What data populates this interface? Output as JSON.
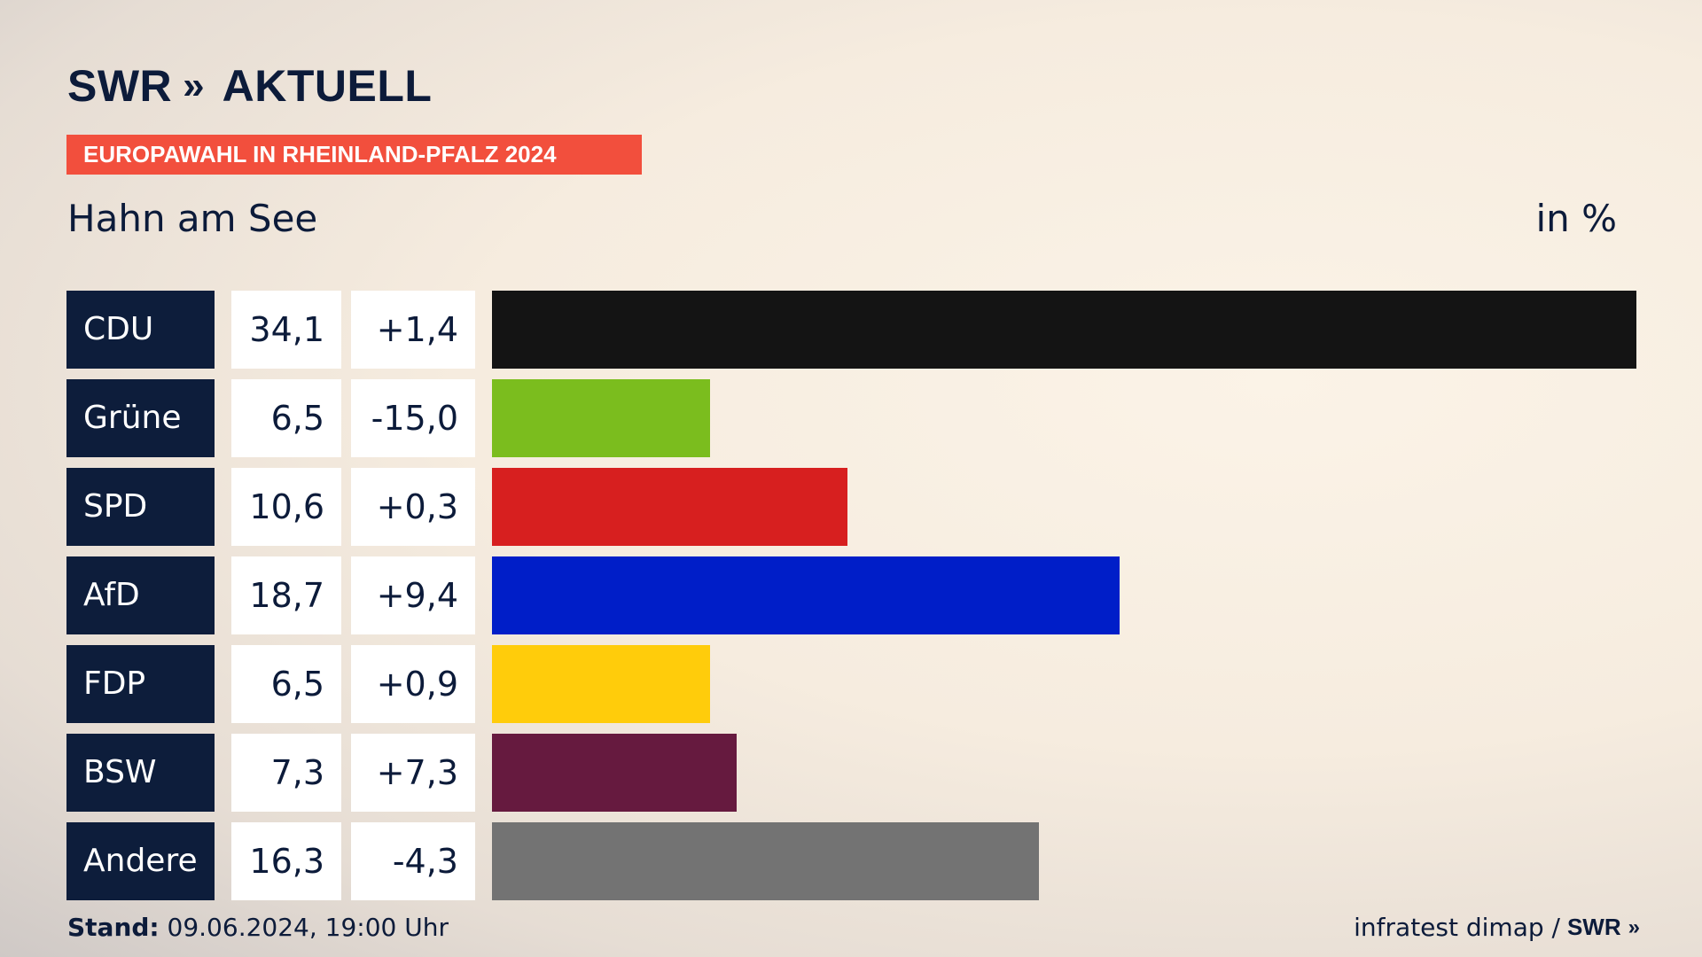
{
  "brand": {
    "name": "SWR",
    "chevrons": "»",
    "product": "AKTUELL"
  },
  "tag": "EUROPAWAHL IN RHEINLAND-PFALZ 2024",
  "place": "Hahn am See",
  "unit": "in %",
  "chart_data": {
    "type": "bar",
    "orientation": "horizontal",
    "categories": [
      "CDU",
      "Grüne",
      "SPD",
      "AfD",
      "FDP",
      "BSW",
      "Andere"
    ],
    "values": [
      34.1,
      6.5,
      10.6,
      18.7,
      6.5,
      7.3,
      16.3
    ],
    "value_labels": [
      "34,1",
      "6,5",
      "10,6",
      "18,7",
      "6,5",
      "7,3",
      "16,3"
    ],
    "changes": [
      "+1,4",
      "-15,0",
      "+0,3",
      "+9,4",
      "+0,9",
      "+7,3",
      "-4,3"
    ],
    "colors": [
      "#141414",
      "#7bbd1e",
      "#d71f1f",
      "#001ec8",
      "#ffcc0b",
      "#661a3f",
      "#737373"
    ],
    "xlim": [
      0,
      34.1
    ]
  },
  "footer": {
    "stand_label": "Stand:",
    "stand_value": "09.06.2024, 19:00 Uhr",
    "source": "infratest dimap /",
    "source_brand": "SWR",
    "source_chevrons": "»"
  }
}
